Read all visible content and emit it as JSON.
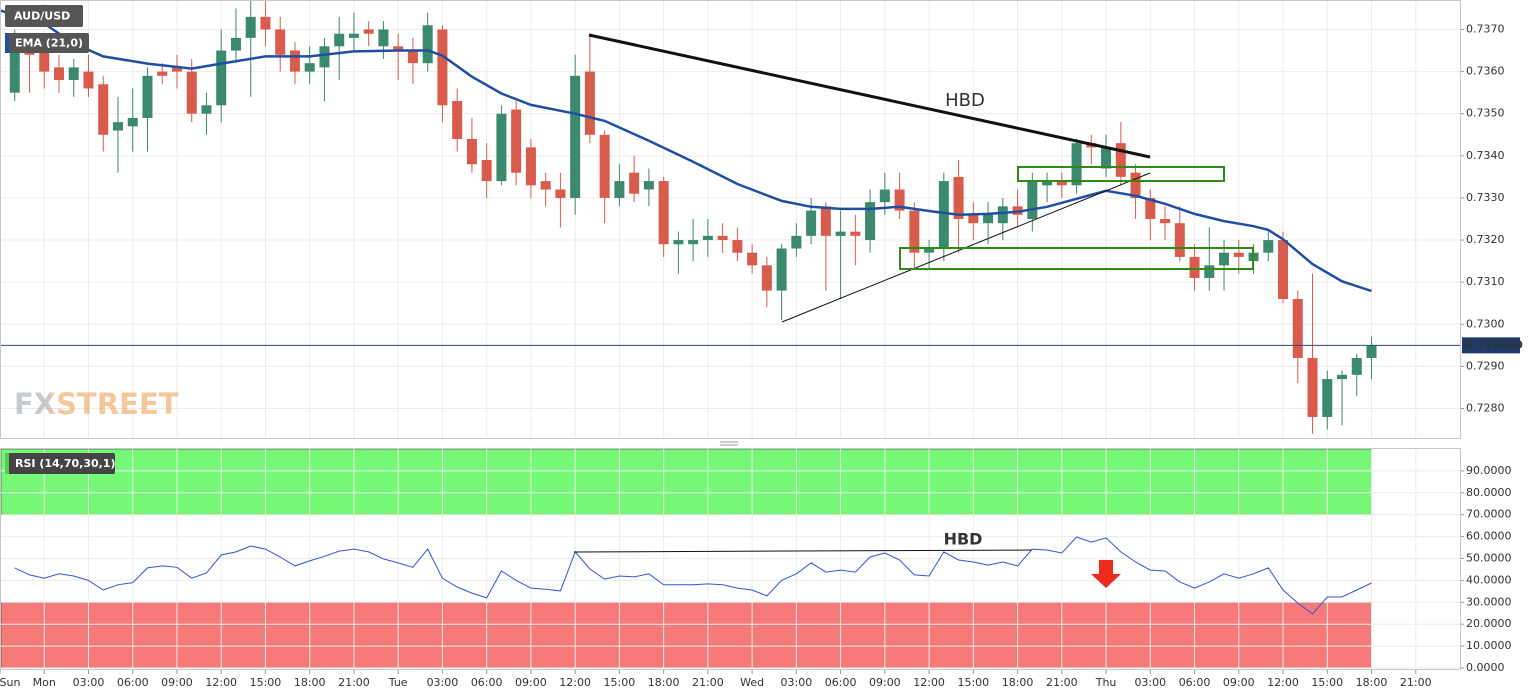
{
  "chart_data": [
    {
      "type": "candlestick",
      "title": "AUD/USD",
      "up_color": "#3b8a6e",
      "down_color": "#d95b4c",
      "x": [
        -2,
        -1,
        0,
        1,
        2,
        3,
        4,
        5,
        6,
        7,
        8,
        9,
        10,
        11,
        12,
        13,
        14,
        15,
        16,
        17,
        18,
        19,
        20,
        21,
        22,
        23,
        24,
        25,
        26,
        27,
        28,
        29,
        30,
        31,
        32,
        33,
        34,
        35,
        36,
        37,
        38,
        39,
        40,
        41,
        42,
        43,
        44,
        45,
        46,
        47,
        48,
        49,
        50,
        51,
        52,
        53,
        54,
        55,
        56,
        57,
        58,
        59,
        60,
        61,
        62,
        63,
        64,
        65,
        66,
        67,
        68,
        69,
        70,
        71,
        72,
        73,
        74,
        75,
        76,
        77,
        78,
        79,
        80,
        81,
        82,
        83,
        84,
        85,
        86,
        87,
        88,
        89,
        90
      ],
      "open": [
        0.7355,
        0.7366,
        0.7366,
        0.7361,
        0.7358,
        0.736,
        0.7357,
        0.7346,
        0.7347,
        0.7349,
        0.736,
        0.7361,
        0.736,
        0.735,
        0.7352,
        0.7365,
        0.7368,
        0.7373,
        0.737,
        0.7365,
        0.736,
        0.7361,
        0.7366,
        0.7368,
        0.737,
        0.7366,
        0.7366,
        0.7365,
        0.7362,
        0.737,
        0.7353,
        0.7344,
        0.7339,
        0.7334,
        0.7351,
        0.7342,
        0.7334,
        0.7332,
        0.733,
        0.736,
        0.7345,
        0.733,
        0.7336,
        0.7332,
        0.7334,
        0.7319,
        0.7319,
        0.732,
        0.7321,
        0.732,
        0.7317,
        0.7314,
        0.7308,
        0.7318,
        0.7321,
        0.7328,
        0.7321,
        0.7322,
        0.732,
        0.7329,
        0.7332,
        0.7327,
        0.7317,
        0.7318,
        0.7335,
        0.7326,
        0.7324,
        0.7324,
        0.7328,
        0.7325,
        0.7333,
        0.7334,
        0.7333,
        0.7343,
        0.7337,
        0.7343,
        0.7336,
        0.733,
        0.7325,
        0.7324,
        0.7316,
        0.7311,
        0.7314,
        0.7317,
        0.7315,
        0.7317,
        0.732,
        0.7306,
        0.7292,
        0.7278,
        0.7287,
        0.7288,
        0.7292
      ],
      "high": [
        0.737,
        0.7369,
        0.7368,
        0.7364,
        0.7363,
        0.7364,
        0.7359,
        0.7354,
        0.7356,
        0.7361,
        0.7362,
        0.7364,
        0.7363,
        0.7355,
        0.737,
        0.7375,
        0.7377,
        0.7377,
        0.7373,
        0.7367,
        0.7366,
        0.7368,
        0.7373,
        0.7374,
        0.7372,
        0.7372,
        0.7369,
        0.7368,
        0.7374,
        0.7371,
        0.7356,
        0.7349,
        0.7343,
        0.7352,
        0.7353,
        0.7344,
        0.7336,
        0.7336,
        0.7364,
        0.7369,
        0.7346,
        0.7338,
        0.734,
        0.7337,
        0.7335,
        0.7322,
        0.7325,
        0.7325,
        0.7324,
        0.7323,
        0.7319,
        0.7316,
        0.7319,
        0.7324,
        0.733,
        0.7329,
        0.7327,
        0.7326,
        0.7332,
        0.7336,
        0.7336,
        0.7329,
        0.732,
        0.7336,
        0.7339,
        0.7329,
        0.7329,
        0.733,
        0.7332,
        0.7336,
        0.7336,
        0.7336,
        0.7344,
        0.7345,
        0.7345,
        0.7348,
        0.7338,
        0.7332,
        0.7328,
        0.7328,
        0.7319,
        0.7323,
        0.732,
        0.732,
        0.7319,
        0.7322,
        0.7322,
        0.7308,
        0.7312,
        0.7289,
        0.7289,
        0.7293,
        0.7297
      ],
      "low": [
        0.7353,
        0.7355,
        0.7356,
        0.7355,
        0.7354,
        0.7354,
        0.7341,
        0.7336,
        0.7341,
        0.7341,
        0.7357,
        0.7356,
        0.7348,
        0.7345,
        0.7348,
        0.7362,
        0.7354,
        0.7366,
        0.736,
        0.7357,
        0.7357,
        0.7353,
        0.7358,
        0.7365,
        0.7366,
        0.7363,
        0.7358,
        0.7357,
        0.736,
        0.7348,
        0.7341,
        0.7336,
        0.733,
        0.7333,
        0.7333,
        0.733,
        0.7328,
        0.7323,
        0.7326,
        0.7343,
        0.7324,
        0.7328,
        0.7329,
        0.7328,
        0.7316,
        0.7312,
        0.7315,
        0.7316,
        0.7317,
        0.7315,
        0.7312,
        0.7304,
        0.7301,
        0.7316,
        0.7319,
        0.7308,
        0.7306,
        0.7314,
        0.7317,
        0.7326,
        0.7325,
        0.7313,
        0.7313,
        0.7315,
        0.7317,
        0.732,
        0.7319,
        0.732,
        0.7323,
        0.7322,
        0.7329,
        0.733,
        0.7331,
        0.7338,
        0.7335,
        0.7333,
        0.7325,
        0.732,
        0.732,
        0.7315,
        0.7308,
        0.7308,
        0.7308,
        0.7312,
        0.7312,
        0.7315,
        0.7305,
        0.7286,
        0.7274,
        0.7275,
        0.7276,
        0.7283,
        0.7287
      ],
      "close": [
        0.7368,
        0.7364,
        0.736,
        0.7358,
        0.7361,
        0.7356,
        0.7345,
        0.7348,
        0.7349,
        0.7359,
        0.7359,
        0.736,
        0.735,
        0.7352,
        0.7365,
        0.7368,
        0.7373,
        0.737,
        0.7364,
        0.736,
        0.7362,
        0.7366,
        0.7369,
        0.7369,
        0.7369,
        0.737,
        0.7365,
        0.7362,
        0.7371,
        0.7352,
        0.7344,
        0.7338,
        0.7334,
        0.735,
        0.7336,
        0.7333,
        0.7332,
        0.733,
        0.7359,
        0.7345,
        0.733,
        0.7334,
        0.7331,
        0.7334,
        0.7319,
        0.732,
        0.732,
        0.7321,
        0.732,
        0.7317,
        0.7314,
        0.7308,
        0.7318,
        0.7321,
        0.7327,
        0.7321,
        0.7322,
        0.7321,
        0.7329,
        0.7332,
        0.7327,
        0.7317,
        0.7318,
        0.7334,
        0.7325,
        0.7324,
        0.7326,
        0.7328,
        0.7326,
        0.7334,
        0.7334,
        0.7333,
        0.7343,
        0.7342,
        0.7342,
        0.7335,
        0.733,
        0.7325,
        0.7324,
        0.7316,
        0.7311,
        0.7314,
        0.7317,
        0.7316,
        0.7317,
        0.732,
        0.7306,
        0.7292,
        0.7278,
        0.7287,
        0.7288,
        0.7292,
        0.7295
      ],
      "ema": {
        "name": "EMA (21,0)",
        "color": "#1f4fa3",
        "x": [
          -3,
          0,
          2,
          4,
          7,
          10,
          12,
          15,
          18,
          21,
          24,
          26,
          27,
          29,
          31,
          33,
          36,
          38,
          41,
          44,
          47,
          50,
          52,
          54,
          56,
          58,
          60,
          62,
          64,
          66,
          68,
          70,
          72,
          74,
          76,
          78,
          80,
          82,
          83,
          84,
          86,
          88,
          90
        ],
        "values": [
          0.73745,
          0.73714,
          0.73667,
          0.73636,
          0.73619,
          0.73607,
          0.73619,
          0.73636,
          0.73636,
          0.73648,
          0.7365,
          0.7365,
          0.73638,
          0.73588,
          0.73548,
          0.73521,
          0.735,
          0.73483,
          0.73436,
          0.73386,
          0.73333,
          0.73293,
          0.73279,
          0.73274,
          0.73274,
          0.73279,
          0.73269,
          0.7326,
          0.73262,
          0.73267,
          0.73279,
          0.73298,
          0.73317,
          0.73305,
          0.73286,
          0.73262,
          0.73245,
          0.73233,
          0.73224,
          0.73202,
          0.73143,
          0.73102,
          0.73079
        ]
      },
      "last": {
        "value": 0.7295,
        "label": "0.729500"
      },
      "ylim": [
        0.7273,
        0.7377
      ],
      "yticks": [
        {
          "value": 0.728,
          "label": "0.7280"
        },
        {
          "value": 0.729,
          "label": "0.7290"
        },
        {
          "value": 0.73,
          "label": "0.7300"
        },
        {
          "value": 0.731,
          "label": "0.7310"
        },
        {
          "value": 0.732,
          "label": "0.7320"
        },
        {
          "value": 0.733,
          "label": "0.7330"
        },
        {
          "value": 0.734,
          "label": "0.7340"
        },
        {
          "value": 0.735,
          "label": "0.7350"
        },
        {
          "value": 0.736,
          "label": "0.7360"
        },
        {
          "value": 0.737,
          "label": "0.7370"
        }
      ],
      "annotation": "HBD",
      "watermark": "FXSTREET",
      "grid": true
    },
    {
      "type": "line",
      "name": "RSI (14,70,30,1)",
      "color": "#3555d8",
      "x": [
        -2,
        -1,
        0,
        1,
        2,
        3,
        4,
        5,
        6,
        7,
        8,
        9,
        10,
        11,
        12,
        13,
        14,
        15,
        16,
        17,
        18,
        19,
        20,
        21,
        22,
        23,
        24,
        25,
        26,
        27,
        28,
        29,
        30,
        31,
        32,
        33,
        34,
        35,
        36,
        37,
        38,
        39,
        40,
        41,
        42,
        43,
        44,
        45,
        46,
        47,
        48,
        49,
        50,
        51,
        52,
        53,
        54,
        55,
        56,
        57,
        58,
        59,
        60,
        61,
        62,
        63,
        64,
        65,
        66,
        67,
        68,
        69,
        70,
        71,
        72,
        73,
        74,
        75,
        76,
        77,
        78,
        79,
        80,
        81,
        82,
        83,
        84,
        85,
        86,
        87,
        88,
        89,
        90
      ],
      "values": [
        45.7,
        42.5,
        41,
        43,
        42,
        40,
        35.6,
        38,
        39,
        45.7,
        46.6,
        46,
        41,
        43.4,
        51.6,
        53,
        55.7,
        54.3,
        50.7,
        46.6,
        48.9,
        51,
        53.4,
        54.3,
        53,
        49.8,
        48,
        46,
        54.3,
        41,
        37,
        34.2,
        32,
        44.3,
        40,
        36.5,
        36,
        35.2,
        53,
        45.2,
        40.6,
        42,
        41.6,
        43,
        38,
        38,
        38,
        38.4,
        38,
        36.5,
        35.6,
        32.9,
        40,
        43,
        48,
        43.8,
        44.7,
        43.8,
        50.7,
        52.5,
        49.3,
        42.5,
        42,
        53,
        49.3,
        48.4,
        47,
        48.4,
        46.6,
        54.3,
        53.9,
        52.5,
        59.8,
        57.5,
        59.4,
        53,
        48.4,
        44.7,
        44.3,
        39.3,
        36.5,
        39.3,
        43,
        41,
        43,
        45.7,
        35.6,
        29.7,
        24.7,
        32.4,
        32.4,
        35.6,
        38.8
      ],
      "bands": [
        {
          "from": 70,
          "to": 100,
          "color": "#77f777"
        },
        {
          "from": 0,
          "to": 30,
          "color": "#f77a7a"
        }
      ],
      "ylim": [
        0,
        100
      ],
      "yticks": [
        {
          "value": 0,
          "label": "0.0000"
        },
        {
          "value": 10,
          "label": "10.0000"
        },
        {
          "value": 20,
          "label": "20.0000"
        },
        {
          "value": 30,
          "label": "30.0000"
        },
        {
          "value": 40,
          "label": "40.0000"
        },
        {
          "value": 50,
          "label": "50.0000"
        },
        {
          "value": 60,
          "label": "60.0000"
        },
        {
          "value": 70,
          "label": "70.0000"
        },
        {
          "value": 80,
          "label": "80.0000"
        },
        {
          "value": 90,
          "label": "90.0000"
        }
      ],
      "xlim": [
        -3,
        96
      ],
      "xticks": [
        {
          "value": -3,
          "label": "Sun"
        },
        {
          "value": 0,
          "label": "Mon"
        },
        {
          "value": 3,
          "label": "03:00"
        },
        {
          "value": 6,
          "label": "06:00"
        },
        {
          "value": 9,
          "label": "09:00"
        },
        {
          "value": 12,
          "label": "12:00"
        },
        {
          "value": 15,
          "label": "15:00"
        },
        {
          "value": 18,
          "label": "18:00"
        },
        {
          "value": 21,
          "label": "21:00"
        },
        {
          "value": 24,
          "label": "Tue"
        },
        {
          "value": 27,
          "label": "03:00"
        },
        {
          "value": 30,
          "label": "06:00"
        },
        {
          "value": 33,
          "label": "09:00"
        },
        {
          "value": 36,
          "label": "12:00"
        },
        {
          "value": 39,
          "label": "15:00"
        },
        {
          "value": 42,
          "label": "18:00"
        },
        {
          "value": 45,
          "label": "21:00"
        },
        {
          "value": 48,
          "label": "Wed"
        },
        {
          "value": 51,
          "label": "03:00"
        },
        {
          "value": 54,
          "label": "06:00"
        },
        {
          "value": 57,
          "label": "09:00"
        },
        {
          "value": 60,
          "label": "12:00"
        },
        {
          "value": 63,
          "label": "15:00"
        },
        {
          "value": 66,
          "label": "18:00"
        },
        {
          "value": 69,
          "label": "21:00"
        },
        {
          "value": 72,
          "label": "Thu"
        },
        {
          "value": 75,
          "label": "03:00"
        },
        {
          "value": 78,
          "label": "06:00"
        },
        {
          "value": 81,
          "label": "09:00"
        },
        {
          "value": 84,
          "label": "12:00"
        },
        {
          "value": 87,
          "label": "15:00"
        },
        {
          "value": 90,
          "label": "18:00"
        },
        {
          "value": 93,
          "label": "21:00"
        }
      ],
      "annotation": "HBD",
      "grid": true
    }
  ]
}
